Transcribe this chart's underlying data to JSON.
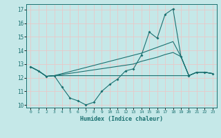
{
  "xlabel": "Humidex (Indice chaleur)",
  "bg_color": "#c5e8e8",
  "grid_color": "#e8c8c8",
  "line_color": "#1a7070",
  "xlim": [
    -0.5,
    23.5
  ],
  "ylim": [
    9.8,
    17.4
  ],
  "ytick_vals": [
    10,
    11,
    12,
    13,
    14,
    15,
    16,
    17
  ],
  "xtick_vals": [
    0,
    1,
    2,
    3,
    4,
    5,
    6,
    7,
    8,
    9,
    10,
    11,
    12,
    13,
    14,
    15,
    16,
    17,
    18,
    19,
    20,
    21,
    22,
    23
  ],
  "jagged_x": [
    0,
    1,
    2,
    3,
    4,
    5,
    6,
    7,
    8,
    9,
    10,
    11,
    12,
    13,
    14,
    15,
    16,
    17,
    18,
    19,
    20,
    21,
    22,
    23
  ],
  "jagged_y": [
    12.8,
    12.5,
    12.1,
    12.15,
    11.3,
    10.5,
    10.3,
    10.0,
    10.2,
    11.0,
    11.5,
    11.9,
    12.5,
    12.65,
    13.65,
    15.35,
    14.9,
    16.65,
    17.05,
    13.55,
    12.15,
    12.4,
    12.4,
    12.3
  ],
  "smooth_lines": [
    {
      "x": [
        0,
        1,
        2,
        3,
        20,
        21,
        22,
        23
      ],
      "y": [
        12.8,
        12.5,
        12.1,
        12.15,
        12.15,
        12.4,
        12.4,
        12.3
      ]
    },
    {
      "x": [
        0,
        1,
        2,
        3,
        14,
        18,
        19,
        20,
        21,
        22,
        23
      ],
      "y": [
        12.8,
        12.5,
        12.1,
        12.15,
        13.8,
        14.65,
        13.55,
        12.15,
        12.4,
        12.4,
        12.3
      ]
    },
    {
      "x": [
        0,
        1,
        2,
        3,
        13,
        14,
        15,
        16,
        17,
        18,
        19,
        20,
        21,
        22,
        23
      ],
      "y": [
        12.8,
        12.5,
        12.1,
        12.15,
        13.0,
        13.2,
        13.35,
        13.5,
        13.7,
        13.85,
        13.55,
        12.15,
        12.4,
        12.4,
        12.3
      ]
    }
  ]
}
